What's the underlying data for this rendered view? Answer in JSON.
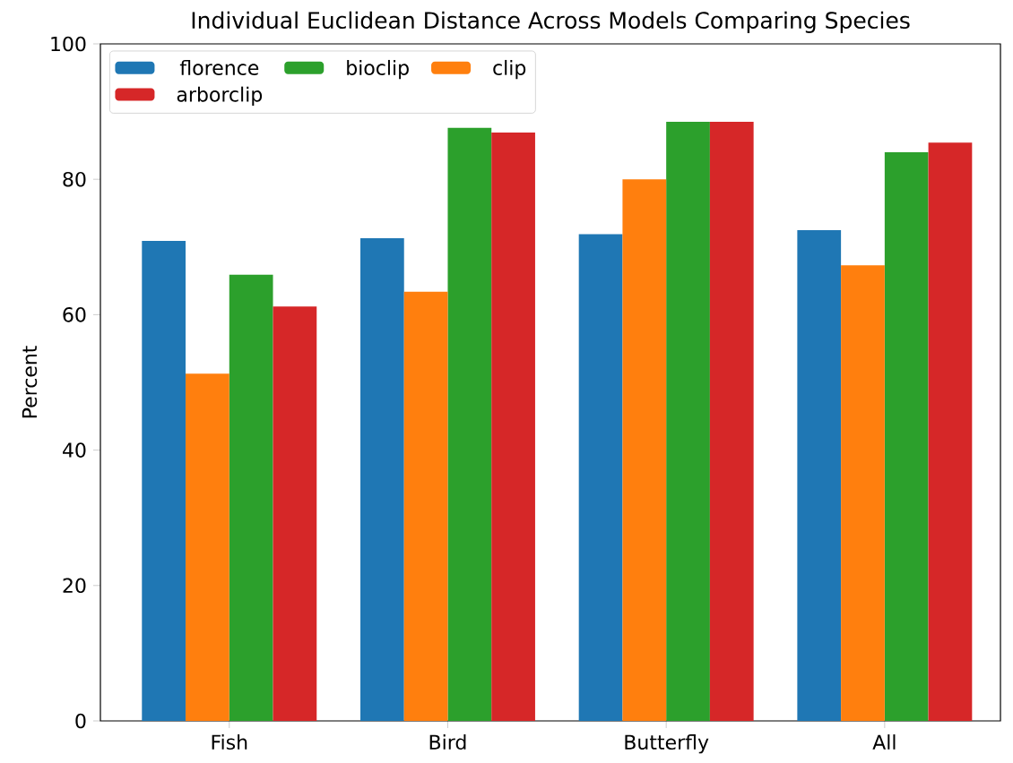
{
  "chart_data": {
    "type": "bar",
    "title": "Individual Euclidean Distance Across Models Comparing Species",
    "ylabel": "Percent",
    "categories": [
      "Fish",
      "Bird",
      "Butterfly",
      "All"
    ],
    "series": [
      {
        "name": "florence",
        "color": "#1f77b4",
        "values": [
          70.9,
          71.3,
          71.9,
          72.5
        ]
      },
      {
        "name": "clip",
        "color": "#ff7f0e",
        "values": [
          51.3,
          63.4,
          80.0,
          67.3
        ]
      },
      {
        "name": "bioclip",
        "color": "#2ca02c",
        "values": [
          65.9,
          87.6,
          88.5,
          84.0
        ]
      },
      {
        "name": "arborclip",
        "color": "#d62728",
        "values": [
          61.2,
          86.9,
          88.5,
          85.4
        ]
      }
    ],
    "ylim": [
      0,
      100
    ],
    "yticks": [
      0,
      20,
      40,
      60,
      80,
      100
    ],
    "grid": false,
    "legend": "top left"
  }
}
